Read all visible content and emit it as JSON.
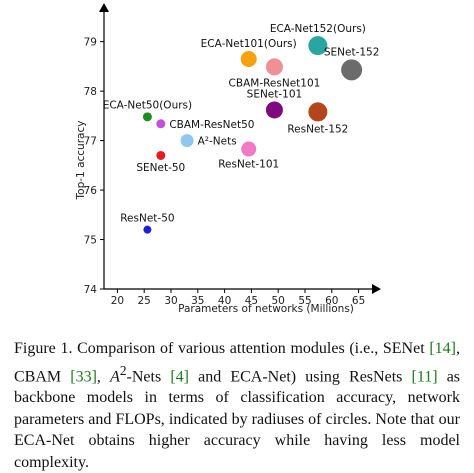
{
  "chart_data": {
    "type": "scatter",
    "xlabel": "Parameters of networks (Millions)",
    "ylabel": "Top-1 accuracy",
    "xlim": [
      17.5,
      67.5
    ],
    "ylim": [
      74,
      79.6
    ],
    "xticks": [
      "20",
      "25",
      "30",
      "35",
      "40",
      "45",
      "50",
      "55",
      "60",
      "65"
    ],
    "yticks": [
      "74",
      "75",
      "76",
      "77",
      "78",
      "79"
    ],
    "grid": false,
    "points": [
      {
        "label": "ResNet-50",
        "x": 25.6,
        "y": 75.2,
        "r": 4,
        "color": "#1f1fd6",
        "label_pos": "above"
      },
      {
        "label": "SENet-50",
        "x": 28.1,
        "y": 76.7,
        "r": 4.5,
        "color": "#e8181e",
        "label_pos": "below"
      },
      {
        "label": "ECA-Net50(Ours)",
        "x": 25.6,
        "y": 77.48,
        "r": 4.5,
        "color": "#1e8c1e",
        "label_pos": "above"
      },
      {
        "label": "CBAM-ResNet50",
        "x": 28.1,
        "y": 77.34,
        "r": 4.5,
        "color": "#c64fd9",
        "label_pos": "right"
      },
      {
        "label": "A²-Nets",
        "x": 33,
        "y": 77.0,
        "r": 6.5,
        "color": "#8fc7ef",
        "label_pos": "right"
      },
      {
        "label": "ResNet-101",
        "x": 44.5,
        "y": 76.83,
        "r": 7.5,
        "color": "#f07ac4",
        "label_pos": "below"
      },
      {
        "label": "ECA-Net101(Ours)",
        "x": 44.5,
        "y": 78.65,
        "r": 8,
        "color": "#f5a20f",
        "label_pos": "above"
      },
      {
        "label": "CBAM-ResNet101",
        "x": 49.3,
        "y": 78.49,
        "r": 8.5,
        "color": "#ef8f96",
        "label_pos": "below"
      },
      {
        "label": "SENet-101",
        "x": 49.3,
        "y": 77.62,
        "r": 8.5,
        "color": "#7f0a7f",
        "label_pos": "above"
      },
      {
        "label": "ResNet-152",
        "x": 57.4,
        "y": 77.58,
        "r": 9.5,
        "color": "#b5451a",
        "label_pos": "below"
      },
      {
        "label": "ECA-Net152(Ours)",
        "x": 57.4,
        "y": 78.92,
        "r": 9.5,
        "color": "#2aa6a0",
        "label_pos": "above"
      },
      {
        "label": "SENet-152",
        "x": 63.7,
        "y": 78.43,
        "r": 10.5,
        "color": "#6b6b6b",
        "label_pos": "above"
      }
    ]
  },
  "caption": {
    "prefix": "Figure 1. Comparison of various attention modules (i.e., SENet ",
    "ref1": "[14]",
    "mid1": ", CBAM ",
    "ref2": "[33]",
    "mid2": ", ",
    "a2": "A",
    "a2sup": "2",
    "mid3": "-Nets ",
    "ref3": "[4]",
    "mid4": " and ECA-Net) using ResNets ",
    "ref4": "[11]",
    "suffix": " as backbone models in terms of classification accuracy, network parameters and FLOPs, indicated by radiuses of circles. Note that our ECA-Net obtains higher accuracy while having less model complexity."
  }
}
